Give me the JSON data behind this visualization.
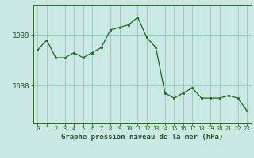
{
  "x": [
    0,
    1,
    2,
    3,
    4,
    5,
    6,
    7,
    8,
    9,
    10,
    11,
    12,
    13,
    14,
    15,
    16,
    17,
    18,
    19,
    20,
    21,
    22,
    23
  ],
  "y": [
    1038.7,
    1038.9,
    1038.55,
    1038.55,
    1038.65,
    1038.55,
    1038.65,
    1038.75,
    1039.1,
    1039.15,
    1039.2,
    1039.35,
    1038.95,
    1038.75,
    1037.85,
    1037.75,
    1037.85,
    1037.95,
    1037.75,
    1037.75,
    1037.75,
    1037.8,
    1037.75,
    1037.5
  ],
  "line_color": "#1a6b1a",
  "marker_color": "#1a6b1a",
  "bg_color": "#cce8e4",
  "plot_bg_color": "#cce8e4",
  "grid_color": "#99ccc7",
  "axis_color": "#2d6b2d",
  "xlabel": "Graphe pression niveau de la mer (hPa)",
  "yticks": [
    1038,
    1039
  ],
  "ylim": [
    1037.25,
    1039.6
  ],
  "xlim": [
    -0.5,
    23.5
  ],
  "font_color": "#1a5c1a",
  "xlabel_fontsize": 6.5,
  "ytick_fontsize": 6.5,
  "xtick_fontsize": 5.0
}
